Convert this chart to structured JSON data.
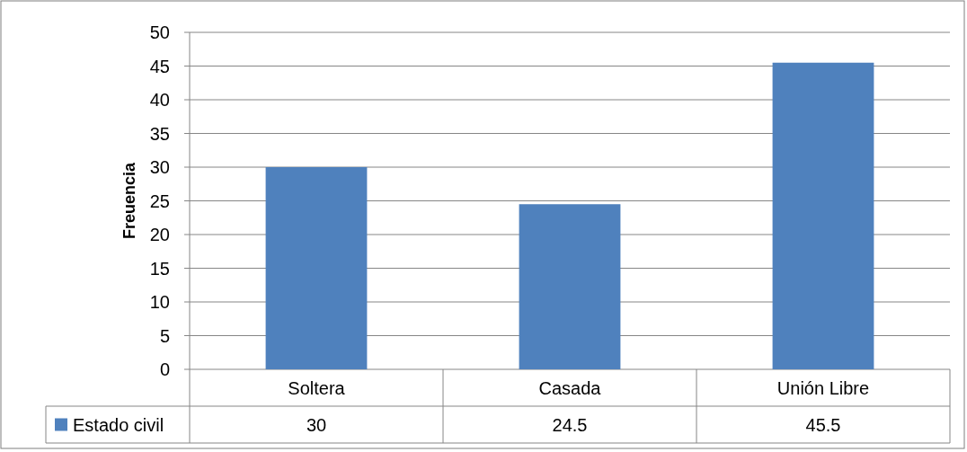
{
  "chart_data": {
    "type": "bar",
    "ylabel": "Freuencia",
    "categories": [
      "Soltera",
      "Casada",
      "Unión Libre"
    ],
    "series": [
      {
        "name": "Estado civil",
        "color": "#4f81bd",
        "values": [
          30,
          24.5,
          45.5
        ]
      }
    ],
    "ylim": [
      0,
      50
    ],
    "yticks": [
      0,
      5,
      10,
      15,
      20,
      25,
      30,
      35,
      40,
      45,
      50
    ],
    "grid": "y",
    "data_labels": true,
    "legend": "bottom"
  }
}
